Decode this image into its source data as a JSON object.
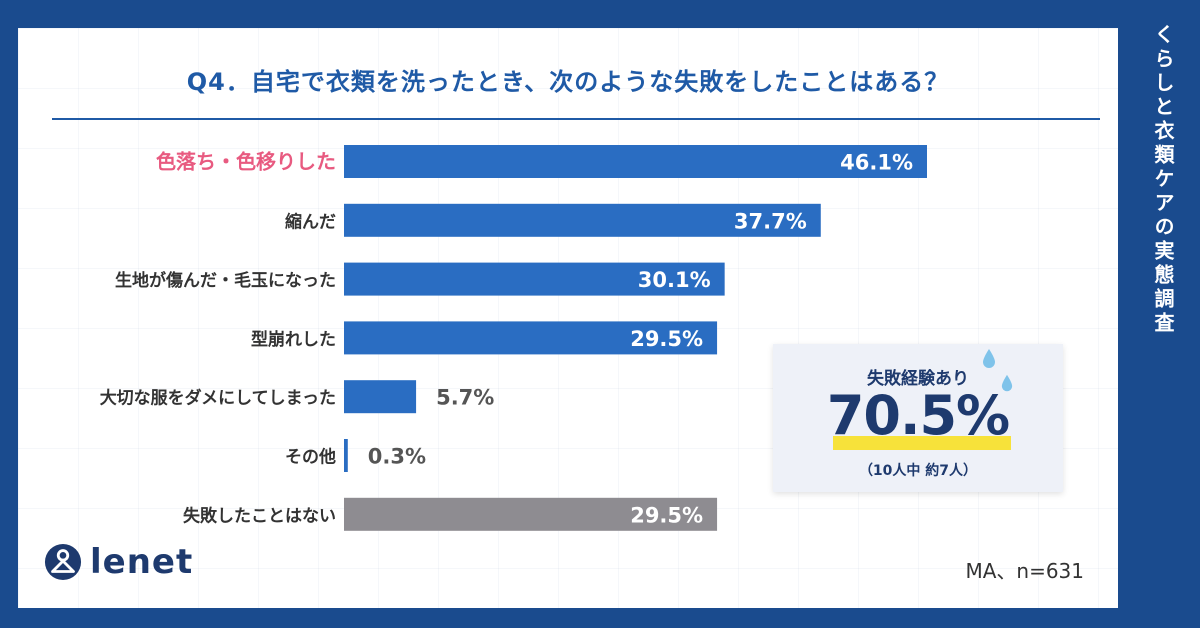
{
  "question": "Q4．自宅で衣類を洗ったとき、次のような失敗をしたことはある？",
  "side_title": "くらしと衣類ケアの実態調査",
  "logo": {
    "text": "lenet"
  },
  "sample_note": "MA、n=631",
  "highlight_box": {
    "title": "失敗経験あり",
    "value": "70.5%",
    "note": "（10人中 約7人）"
  },
  "colors": {
    "background": "#1a4b8e",
    "bar_main": "#2a6dc2",
    "bar_grey": "#8e8c91",
    "label_highlight": "#e85a80",
    "accent_yellow": "#f7e23a"
  },
  "chart_data": {
    "type": "bar",
    "orientation": "horizontal",
    "title": "",
    "xlabel": "",
    "ylabel": "",
    "xlim": [
      0,
      50
    ],
    "grid": false,
    "categories": [
      "色落ち・色移りした",
      "縮んだ",
      "生地が傷んだ・毛玉になった",
      "型崩れした",
      "大切な服をダメにしてしまった",
      "その他",
      "失敗したことはない"
    ],
    "values": [
      46.1,
      37.7,
      30.1,
      29.5,
      5.7,
      0.3,
      29.5
    ],
    "value_labels": [
      "46.1%",
      "37.7%",
      "30.1%",
      "29.5%",
      "5.7%",
      "0.3%",
      "29.5%"
    ],
    "bar_colors": [
      "#2a6dc2",
      "#2a6dc2",
      "#2a6dc2",
      "#2a6dc2",
      "#2a6dc2",
      "#2a6dc2",
      "#8e8c91"
    ],
    "highlighted_category": "色落ち・色移りした"
  }
}
